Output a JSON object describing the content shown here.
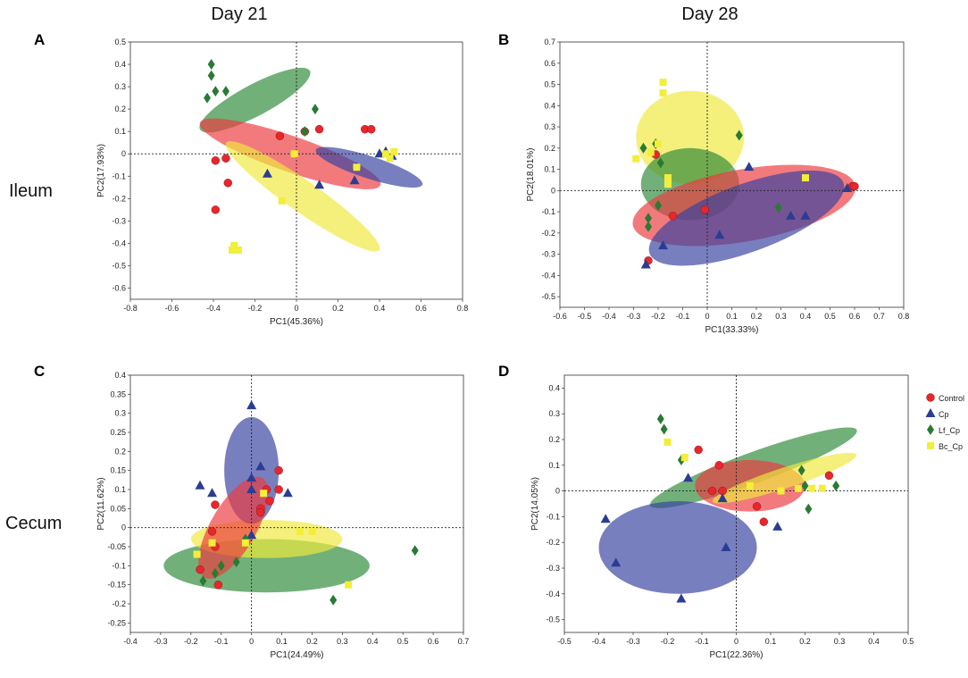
{
  "figure": {
    "column_titles": [
      "Day 21",
      "Day 28"
    ],
    "row_titles": [
      "Ileum",
      "Cecum"
    ]
  },
  "legend": [
    {
      "name": "Control",
      "marker": "circle",
      "color": "#e8262b"
    },
    {
      "name": "Cp",
      "marker": "triangle",
      "color": "#2b3d93"
    },
    {
      "name": "Lf_Cp",
      "marker": "diamond",
      "color": "#2a7a34"
    },
    {
      "name": "Bc_Cp",
      "marker": "square",
      "color": "#f2ee3a"
    }
  ],
  "chart_data": [
    {
      "panel": "A",
      "type": "scatter",
      "xlabel": "PC1(45.36%)",
      "ylabel": "PC2(17.93%)",
      "xlim": [
        -0.8,
        0.8
      ],
      "ylim": [
        -0.65,
        0.5
      ],
      "xticks": [
        "-0.8",
        "-0.6",
        "-0.4",
        "-0.2",
        "0",
        "0.2",
        "0.4",
        "0.6",
        "0.8"
      ],
      "yticks": [
        "0.5",
        "0.4",
        "0.3",
        "0.2",
        "0.1",
        "0",
        "-0.1",
        "-0.2",
        "-0.3",
        "-0.4",
        "-0.5",
        "-0.6"
      ],
      "series": [
        {
          "name": "Control",
          "points": [
            [
              -0.39,
              -0.03
            ],
            [
              -0.34,
              -0.02
            ],
            [
              -0.33,
              -0.13
            ],
            [
              -0.39,
              -0.25
            ],
            [
              -0.08,
              0.08
            ],
            [
              0.04,
              0.1
            ],
            [
              0.11,
              0.11
            ],
            [
              0.33,
              0.11
            ],
            [
              0.36,
              0.11
            ]
          ]
        },
        {
          "name": "Cp",
          "points": [
            [
              -0.14,
              -0.09
            ],
            [
              0.11,
              -0.14
            ],
            [
              0.28,
              -0.12
            ],
            [
              0.4,
              0.0
            ],
            [
              0.43,
              0.01
            ],
            [
              0.46,
              -0.01
            ],
            [
              0.29,
              -0.06
            ]
          ]
        },
        {
          "name": "Lf_Cp",
          "points": [
            [
              -0.43,
              0.25
            ],
            [
              -0.41,
              0.35
            ],
            [
              -0.41,
              0.4
            ],
            [
              -0.39,
              0.28
            ],
            [
              -0.34,
              0.28
            ],
            [
              0.04,
              0.1
            ],
            [
              0.09,
              0.2
            ]
          ]
        },
        {
          "name": "Bc_Cp",
          "points": [
            [
              -0.31,
              -0.43
            ],
            [
              -0.3,
              -0.41
            ],
            [
              -0.28,
              -0.43
            ],
            [
              -0.07,
              -0.21
            ],
            [
              -0.01,
              0.0
            ],
            [
              0.29,
              -0.06
            ],
            [
              0.43,
              0.0
            ],
            [
              0.45,
              -0.02
            ],
            [
              0.47,
              0.01
            ]
          ]
        }
      ],
      "ellipses": [
        {
          "name": "Lf_Cp",
          "cx": -0.2,
          "cy": 0.24,
          "rx": 0.3,
          "ry": 0.07,
          "angle_deg": 28
        },
        {
          "name": "Control",
          "cx": -0.03,
          "cy": 0.0,
          "rx": 0.46,
          "ry": 0.08,
          "angle_deg": -19
        },
        {
          "name": "Bc_Cp",
          "cx": 0.03,
          "cy": -0.19,
          "rx": 0.45,
          "ry": 0.07,
          "angle_deg": -35
        },
        {
          "name": "Cp",
          "cx": 0.35,
          "cy": -0.06,
          "rx": 0.27,
          "ry": 0.05,
          "angle_deg": -18
        }
      ]
    },
    {
      "panel": "B",
      "type": "scatter",
      "xlabel": "PC1(33.33%)",
      "ylabel": "PC2(18.01%)",
      "xlim": [
        -0.6,
        0.8
      ],
      "ylim": [
        -0.55,
        0.7
      ],
      "xticks": [
        "-0.6",
        "-0.5",
        "-0.4",
        "-0.3",
        "-0.2",
        "-0.1",
        "0",
        "0.1",
        "0.2",
        "0.3",
        "0.4",
        "0.5",
        "0.6",
        "0.7",
        "0.8"
      ],
      "yticks": [
        "0.7",
        "0.6",
        "0.5",
        "0.4",
        "0.3",
        "0.2",
        "0.1",
        "0",
        "-0.1",
        "-0.2",
        "-0.3",
        "-0.4",
        "-0.5"
      ],
      "series": [
        {
          "name": "Control",
          "points": [
            [
              -0.21,
              0.17
            ],
            [
              -0.14,
              -0.12
            ],
            [
              -0.24,
              -0.33
            ],
            [
              -0.01,
              -0.09
            ],
            [
              0.59,
              0.02
            ],
            [
              0.6,
              0.02
            ]
          ]
        },
        {
          "name": "Cp",
          "points": [
            [
              -0.25,
              -0.35
            ],
            [
              -0.18,
              -0.26
            ],
            [
              0.05,
              -0.21
            ],
            [
              0.17,
              0.11
            ],
            [
              0.34,
              -0.12
            ],
            [
              0.4,
              -0.12
            ],
            [
              0.57,
              0.01
            ]
          ]
        },
        {
          "name": "Lf_Cp",
          "points": [
            [
              -0.26,
              0.2
            ],
            [
              -0.21,
              0.22
            ],
            [
              -0.19,
              0.13
            ],
            [
              -0.24,
              -0.13
            ],
            [
              -0.24,
              -0.17
            ],
            [
              -0.2,
              -0.07
            ],
            [
              0.13,
              0.26
            ],
            [
              0.29,
              -0.08
            ]
          ]
        },
        {
          "name": "Bc_Cp",
          "points": [
            [
              -0.18,
              0.51
            ],
            [
              -0.18,
              0.46
            ],
            [
              -0.2,
              0.22
            ],
            [
              -0.29,
              0.15
            ],
            [
              -0.16,
              0.06
            ],
            [
              -0.16,
              0.03
            ],
            [
              -0.23,
              0.18
            ],
            [
              0.4,
              0.06
            ]
          ]
        }
      ],
      "ellipses": [
        {
          "name": "Bc_Cp",
          "cx": -0.07,
          "cy": 0.25,
          "rx": 0.22,
          "ry": 0.22,
          "angle_deg": 0
        },
        {
          "name": "Lf_Cp",
          "cx": -0.07,
          "cy": 0.03,
          "rx": 0.2,
          "ry": 0.17,
          "angle_deg": 0
        },
        {
          "name": "Control",
          "cx": 0.15,
          "cy": -0.07,
          "rx": 0.46,
          "ry": 0.17,
          "angle_deg": 10
        },
        {
          "name": "Cp",
          "cx": 0.16,
          "cy": -0.13,
          "rx": 0.42,
          "ry": 0.16,
          "angle_deg": 20
        }
      ]
    },
    {
      "panel": "C",
      "type": "scatter",
      "xlabel": "PC1(24.49%)",
      "ylabel": "PC2(11.62%)",
      "xlim": [
        -0.4,
        0.7
      ],
      "ylim": [
        -0.275,
        0.4
      ],
      "xticks": [
        "-0.4",
        "-0.3",
        "-0.2",
        "-0.1",
        "0",
        "0.1",
        "0.2",
        "0.3",
        "0.4",
        "0.5",
        "0.6",
        "0.7"
      ],
      "yticks": [
        "0.4",
        "0.35",
        "0.3",
        "0.25",
        "0.2",
        "0.15",
        "0.1",
        "0.05",
        "0",
        "-0.05",
        "-0.1",
        "-0.15",
        "-0.2",
        "-0.25"
      ],
      "series": [
        {
          "name": "Control",
          "points": [
            [
              0.09,
              0.15
            ],
            [
              0.09,
              0.1
            ],
            [
              0.05,
              0.1
            ],
            [
              0.06,
              0.07
            ],
            [
              0.03,
              0.05
            ],
            [
              0.03,
              0.04
            ],
            [
              -0.12,
              0.06
            ],
            [
              -0.13,
              -0.01
            ],
            [
              -0.12,
              -0.05
            ],
            [
              -0.17,
              -0.11
            ],
            [
              -0.11,
              -0.15
            ]
          ]
        },
        {
          "name": "Cp",
          "points": [
            [
              0.0,
              0.32
            ],
            [
              0.03,
              0.16
            ],
            [
              0.0,
              0.13
            ],
            [
              0.12,
              0.09
            ],
            [
              -0.17,
              0.11
            ],
            [
              -0.13,
              0.09
            ],
            [
              0.0,
              0.1
            ],
            [
              0.0,
              -0.02
            ]
          ]
        },
        {
          "name": "Lf_Cp",
          "points": [
            [
              -0.02,
              -0.03
            ],
            [
              -0.05,
              -0.09
            ],
            [
              -0.1,
              -0.1
            ],
            [
              -0.16,
              -0.14
            ],
            [
              -0.12,
              -0.12
            ],
            [
              0.27,
              -0.19
            ],
            [
              0.54,
              -0.06
            ]
          ]
        },
        {
          "name": "Bc_Cp",
          "points": [
            [
              0.04,
              0.09
            ],
            [
              -0.02,
              -0.04
            ],
            [
              -0.13,
              -0.04
            ],
            [
              -0.18,
              -0.07
            ],
            [
              0.16,
              -0.01
            ],
            [
              0.2,
              -0.01
            ],
            [
              0.32,
              -0.15
            ]
          ]
        }
      ],
      "ellipses": [
        {
          "name": "Lf_Cp",
          "cx": 0.05,
          "cy": -0.1,
          "rx": 0.34,
          "ry": 0.07,
          "angle_deg": 0
        },
        {
          "name": "Bc_Cp",
          "cx": 0.05,
          "cy": -0.03,
          "rx": 0.25,
          "ry": 0.05,
          "angle_deg": 0
        },
        {
          "name": "Cp",
          "cx": 0.0,
          "cy": 0.15,
          "rx": 0.09,
          "ry": 0.14,
          "angle_deg": 0
        },
        {
          "name": "Control",
          "cx": -0.06,
          "cy": 0.0,
          "rx": 0.19,
          "ry": 0.06,
          "angle_deg": 60
        }
      ]
    },
    {
      "panel": "D",
      "type": "scatter",
      "xlabel": "PC1(22.36%)",
      "ylabel": "PC2(14.05%)",
      "xlim": [
        -0.5,
        0.5
      ],
      "ylim": [
        -0.55,
        0.45
      ],
      "xticks": [
        "-0.5",
        "-0.4",
        "-0.3",
        "-0.2",
        "-0.1",
        "0",
        "0.1",
        "0.2",
        "0.3",
        "0.4",
        "0.5"
      ],
      "yticks": [
        "0.4",
        "0.3",
        "0.2",
        "0.1",
        "0",
        "-0.1",
        "-0.2",
        "-0.3",
        "-0.4",
        "-0.5"
      ],
      "series": [
        {
          "name": "Control",
          "points": [
            [
              -0.11,
              0.16
            ],
            [
              -0.05,
              0.1
            ],
            [
              -0.07,
              0.0
            ],
            [
              -0.04,
              0.0
            ],
            [
              0.06,
              -0.06
            ],
            [
              0.08,
              -0.12
            ],
            [
              0.27,
              0.06
            ]
          ]
        },
        {
          "name": "Cp",
          "points": [
            [
              -0.38,
              -0.11
            ],
            [
              -0.35,
              -0.28
            ],
            [
              -0.16,
              -0.42
            ],
            [
              -0.14,
              0.05
            ],
            [
              -0.04,
              -0.03
            ],
            [
              -0.03,
              -0.22
            ],
            [
              0.12,
              -0.14
            ]
          ]
        },
        {
          "name": "Lf_Cp",
          "points": [
            [
              -0.22,
              0.28
            ],
            [
              -0.21,
              0.24
            ],
            [
              -0.16,
              0.12
            ],
            [
              0.19,
              0.08
            ],
            [
              0.2,
              0.02
            ],
            [
              0.21,
              -0.07
            ],
            [
              0.29,
              0.02
            ]
          ]
        },
        {
          "name": "Bc_Cp",
          "points": [
            [
              -0.2,
              0.19
            ],
            [
              -0.15,
              0.13
            ],
            [
              0.04,
              0.02
            ],
            [
              0.13,
              0.0
            ],
            [
              0.18,
              0.01
            ],
            [
              0.22,
              0.01
            ],
            [
              0.25,
              0.01
            ]
          ]
        }
      ],
      "ellipses": [
        {
          "name": "Lf_Cp",
          "cx": 0.05,
          "cy": 0.09,
          "rx": 0.32,
          "ry": 0.06,
          "angle_deg": 20
        },
        {
          "name": "Cp",
          "cx": -0.17,
          "cy": -0.22,
          "rx": 0.23,
          "ry": 0.18,
          "angle_deg": 0
        },
        {
          "name": "Control",
          "cx": 0.04,
          "cy": 0.02,
          "rx": 0.16,
          "ry": 0.1,
          "angle_deg": 0
        },
        {
          "name": "Bc_Cp",
          "cx": 0.14,
          "cy": 0.05,
          "rx": 0.22,
          "ry": 0.04,
          "angle_deg": 18
        }
      ]
    }
  ]
}
